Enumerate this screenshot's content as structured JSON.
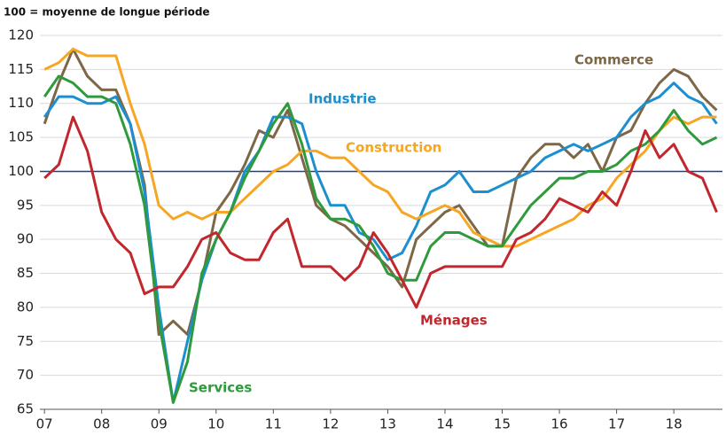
{
  "chart_data": {
    "type": "line",
    "title": "100 = moyenne de longue période",
    "x": [
      2007,
      2007.25,
      2007.5,
      2007.75,
      2008,
      2008.25,
      2008.5,
      2008.75,
      2009,
      2009.25,
      2009.5,
      2009.75,
      2010,
      2010.25,
      2010.5,
      2010.75,
      2011,
      2011.25,
      2011.5,
      2011.75,
      2012,
      2012.25,
      2012.5,
      2012.75,
      2013,
      2013.25,
      2013.5,
      2013.75,
      2014,
      2014.25,
      2014.5,
      2014.75,
      2015,
      2015.25,
      2015.5,
      2015.75,
      2016,
      2016.25,
      2016.5,
      2016.75,
      2017,
      2017.25,
      2017.5,
      2017.75,
      2018,
      2018.25,
      2018.5,
      2018.75
    ],
    "series": [
      {
        "name": "Commerce",
        "color": "#7d6746",
        "values": [
          107,
          113,
          118,
          114,
          112,
          112,
          107,
          98,
          76,
          78,
          76,
          84,
          94,
          97,
          101,
          106,
          105,
          109,
          102,
          95,
          93,
          92,
          90,
          88,
          86,
          83,
          90,
          92,
          94,
          95,
          92,
          89,
          89,
          99,
          102,
          104,
          104,
          102,
          104,
          100,
          105,
          106,
          110,
          113,
          115,
          114,
          111,
          109
        ]
      },
      {
        "name": "Industrie",
        "color": "#1b8fd0",
        "values": [
          108,
          111,
          111,
          110,
          110,
          111,
          107,
          97,
          80,
          66,
          75,
          84,
          90,
          94,
          100,
          103,
          108,
          108,
          107,
          100,
          95,
          95,
          91,
          90,
          87,
          88,
          92,
          97,
          98,
          100,
          97,
          97,
          98,
          99,
          100,
          102,
          103,
          104,
          103,
          104,
          105,
          108,
          110,
          111,
          113,
          111,
          110,
          107
        ]
      },
      {
        "name": "Construction",
        "color": "#f6a623",
        "values": [
          115,
          116,
          118,
          117,
          117,
          117,
          110,
          104,
          95,
          93,
          94,
          93,
          94,
          94,
          96,
          98,
          100,
          101,
          103,
          103,
          102,
          102,
          100,
          98,
          97,
          94,
          93,
          94,
          95,
          94,
          91,
          90,
          89,
          89,
          90,
          91,
          92,
          93,
          95,
          96,
          99,
          101,
          103,
          106,
          108,
          107,
          108,
          108
        ]
      },
      {
        "name": "Services",
        "color": "#2f9a3c",
        "values": [
          111,
          114,
          113,
          111,
          111,
          110,
          104,
          95,
          78,
          66,
          72,
          85,
          90,
          94,
          99,
          103,
          107,
          110,
          104,
          96,
          93,
          93,
          92,
          89,
          85,
          84,
          84,
          89,
          91,
          91,
          90,
          89,
          89,
          92,
          95,
          97,
          99,
          99,
          100,
          100,
          101,
          103,
          104,
          106,
          109,
          106,
          104,
          105
        ]
      },
      {
        "name": "Ménages",
        "color": "#c1272d",
        "values": [
          99,
          101,
          108,
          103,
          94,
          90,
          88,
          82,
          83,
          83,
          86,
          90,
          91,
          88,
          87,
          87,
          91,
          93,
          86,
          86,
          86,
          84,
          86,
          91,
          88,
          84,
          80,
          85,
          86,
          86,
          86,
          86,
          86,
          90,
          91,
          93,
          96,
          95,
          94,
          97,
          95,
          100,
          106,
          102,
          104,
          100,
          99,
          94
        ]
      }
    ],
    "xlim": [
      2006.92,
      2018.85
    ],
    "xticks": [
      {
        "value": 2007,
        "label": "07"
      },
      {
        "value": 2008,
        "label": "08"
      },
      {
        "value": 2009,
        "label": "09"
      },
      {
        "value": 2010,
        "label": "10"
      },
      {
        "value": 2011,
        "label": "11"
      },
      {
        "value": 2012,
        "label": "12"
      },
      {
        "value": 2013,
        "label": "13"
      },
      {
        "value": 2014,
        "label": "14"
      },
      {
        "value": 2015,
        "label": "15"
      },
      {
        "value": 2016,
        "label": "16"
      },
      {
        "value": 2017,
        "label": "17"
      },
      {
        "value": 2018,
        "label": "18"
      }
    ],
    "ylim": [
      65,
      120
    ],
    "yticks": [
      65,
      70,
      75,
      80,
      85,
      90,
      95,
      100,
      105,
      110,
      115,
      120
    ],
    "reference_line": 100,
    "grid": true
  }
}
